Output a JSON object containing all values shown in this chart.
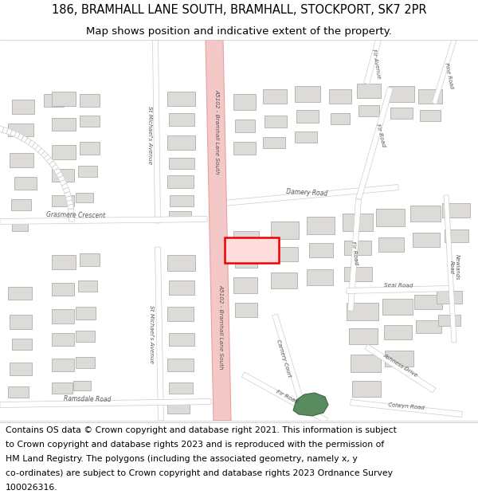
{
  "title_line1": "186, BRAMHALL LANE SOUTH, BRAMHALL, STOCKPORT, SK7 2PR",
  "title_line2": "Map shows position and indicative extent of the property.",
  "footer_lines": [
    "Contains OS data © Crown copyright and database right 2021. This information is subject",
    "to Crown copyright and database rights 2023 and is reproduced with the permission of",
    "HM Land Registry. The polygons (including the associated geometry, namely x, y",
    "co-ordinates) are subject to Crown copyright and database rights 2023 Ordnance Survey",
    "100026316."
  ],
  "map_bg": "#f2f0ee",
  "road_main_color": "#f5c8c8",
  "road_main_edge": "#e8a0a0",
  "road_white": "#ffffff",
  "road_white_edge": "#cccccc",
  "building_color": "#dddbd8",
  "building_edge_color": "#b0aeaa",
  "highlight_fill": "#ffdddd",
  "highlight_edge": "#ee0000",
  "green_color": "#5a8a60",
  "title_fontsize": 10.5,
  "subtitle_fontsize": 9.5,
  "footer_fontsize": 7.8,
  "label_fontsize": 5.5,
  "label_color": "#555555"
}
